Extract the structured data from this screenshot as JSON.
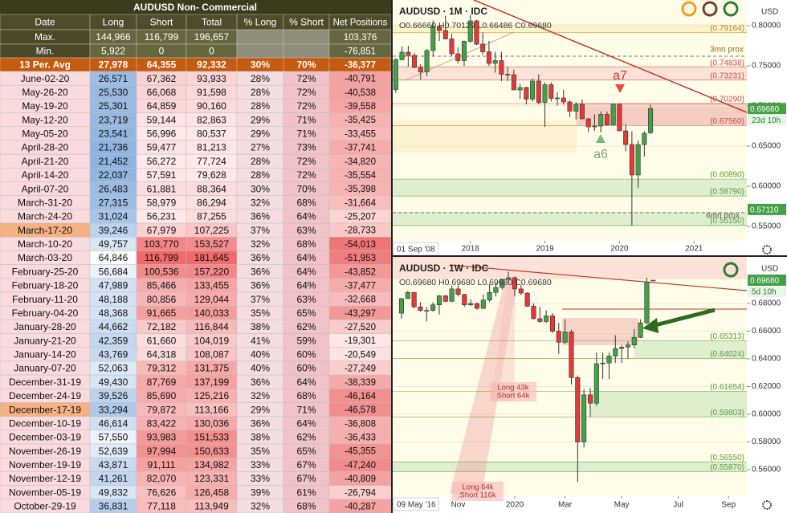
{
  "table": {
    "title": "AUDUSD Non- Commercial",
    "columns": [
      "Date",
      "Long",
      "Short",
      "Total",
      "% Long",
      "% Short",
      "Net Positions"
    ],
    "summary": [
      {
        "label": "Max.",
        "cells": [
          "144,966",
          "116,799",
          "196,657",
          null,
          null,
          "103,376"
        ]
      },
      {
        "label": "Min.",
        "cells": [
          "5,922",
          "0",
          "0",
          null,
          null,
          "-76,851"
        ]
      },
      {
        "label": "13 Per. Avg",
        "cells": [
          "27,978",
          "64,355",
          "92,332",
          "30%",
          "70%",
          "-36,377"
        ]
      }
    ],
    "rows": [
      {
        "cells": [
          "June-02-20",
          "26,571",
          "67,362",
          "93,933",
          "28%",
          "72%",
          "-40,791"
        ]
      },
      {
        "cells": [
          "May-26-20",
          "25,530",
          "66,068",
          "91,598",
          "28%",
          "72%",
          "-40,538"
        ]
      },
      {
        "cells": [
          "May-19-20",
          "25,301",
          "64,859",
          "90,160",
          "28%",
          "72%",
          "-39,558"
        ]
      },
      {
        "cells": [
          "May-12-20",
          "23,719",
          "59,144",
          "82,863",
          "29%",
          "71%",
          "-35,425"
        ]
      },
      {
        "cells": [
          "May-05-20",
          "23,541",
          "56,996",
          "80,537",
          "29%",
          "71%",
          "-33,455"
        ]
      },
      {
        "cells": [
          "April-28-20",
          "21,736",
          "59,477",
          "81,213",
          "27%",
          "73%",
          "-37,741"
        ]
      },
      {
        "cells": [
          "April-21-20",
          "21,452",
          "56,272",
          "77,724",
          "28%",
          "72%",
          "-34,820"
        ]
      },
      {
        "cells": [
          "April-14-20",
          "22,037",
          "57,591",
          "79,628",
          "28%",
          "72%",
          "-35,554"
        ]
      },
      {
        "cells": [
          "April-07-20",
          "26,483",
          "61,881",
          "88,364",
          "30%",
          "70%",
          "-35,398"
        ]
      },
      {
        "cells": [
          "March-31-20",
          "27,315",
          "58,979",
          "86,294",
          "32%",
          "68%",
          "-31,664"
        ]
      },
      {
        "cells": [
          "March-24-20",
          "31,024",
          "56,231",
          "87,255",
          "36%",
          "64%",
          "-25,207"
        ]
      },
      {
        "cells": [
          "March-17-20",
          "39,246",
          "67,979",
          "107,225",
          "37%",
          "63%",
          "-28,733"
        ],
        "date_color": "#f4b183"
      },
      {
        "cells": [
          "March-10-20",
          "49,757",
          "103,770",
          "153,527",
          "32%",
          "68%",
          "-54,013"
        ]
      },
      {
        "cells": [
          "March-03-20",
          "64,846",
          "116,799",
          "181,645",
          "36%",
          "64%",
          "-51,953"
        ]
      },
      {
        "cells": [
          "February-25-20",
          "56,684",
          "100,536",
          "157,220",
          "36%",
          "64%",
          "-43,852"
        ]
      },
      {
        "cells": [
          "February-18-20",
          "47,989",
          "85,466",
          "133,455",
          "36%",
          "64%",
          "-37,477"
        ]
      },
      {
        "cells": [
          "February-11-20",
          "48,188",
          "80,856",
          "129,044",
          "37%",
          "63%",
          "-32,668"
        ]
      },
      {
        "cells": [
          "February-04-20",
          "48,368",
          "91,665",
          "140,033",
          "35%",
          "65%",
          "-43,297"
        ]
      },
      {
        "cells": [
          "January-28-20",
          "44,662",
          "72,182",
          "116,844",
          "38%",
          "62%",
          "-27,520"
        ]
      },
      {
        "cells": [
          "January-21-20",
          "42,359",
          "61,660",
          "104,019",
          "41%",
          "59%",
          "-19,301"
        ]
      },
      {
        "cells": [
          "January-14-20",
          "43,769",
          "64,318",
          "108,087",
          "40%",
          "60%",
          "-20,549"
        ]
      },
      {
        "cells": [
          "January-07-20",
          "52,063",
          "79,312",
          "131,375",
          "40%",
          "60%",
          "-27,249"
        ]
      },
      {
        "cells": [
          "December-31-19",
          "49,430",
          "87,769",
          "137,199",
          "36%",
          "64%",
          "-38,339"
        ]
      },
      {
        "cells": [
          "December-24-19",
          "39,526",
          "85,690",
          "125,216",
          "32%",
          "68%",
          "-46,164"
        ]
      },
      {
        "cells": [
          "December-17-19",
          "33,294",
          "79,872",
          "113,166",
          "29%",
          "71%",
          "-46,578"
        ],
        "date_color": "#f4b183"
      },
      {
        "cells": [
          "December-10-19",
          "46,614",
          "83,422",
          "130,036",
          "36%",
          "64%",
          "-36,808"
        ]
      },
      {
        "cells": [
          "December-03-19",
          "57,550",
          "93,983",
          "151,533",
          "38%",
          "62%",
          "-36,433"
        ]
      },
      {
        "cells": [
          "November-26-19",
          "52,639",
          "97,994",
          "150,633",
          "35%",
          "65%",
          "-45,355"
        ]
      },
      {
        "cells": [
          "November-19-19",
          "43,871",
          "91,111",
          "134,982",
          "33%",
          "67%",
          "-47,240"
        ]
      },
      {
        "cells": [
          "November-12-19",
          "41,261",
          "82,070",
          "123,331",
          "33%",
          "67%",
          "-40,809"
        ]
      },
      {
        "cells": [
          "November-05-19",
          "49,832",
          "76,626",
          "126,458",
          "39%",
          "61%",
          "-26,794"
        ]
      },
      {
        "cells": [
          "October-29-19",
          "36,831",
          "77,118",
          "113,949",
          "32%",
          "68%",
          "-40,287"
        ]
      }
    ]
  },
  "chart_data": [
    {
      "type": "candlestick",
      "title": "AUDUSD · 1M · IDC",
      "ohlc": "O0.66660 H0.70129 L0.66486 C0.69680",
      "currency": "USD",
      "date_label": "01 Sep '08",
      "countdown": "23d 10h",
      "up_color": "#43a047",
      "down_color": "#e53935",
      "xlim": [
        -0.5,
        56.5
      ],
      "xticks": [
        {
          "value": 12,
          "label": "2018"
        },
        {
          "value": 24,
          "label": "2019"
        },
        {
          "value": 36,
          "label": "2020"
        },
        {
          "value": 48,
          "label": "2021"
        }
      ],
      "ylim": [
        0.532,
        0.832
      ],
      "yticks": [
        {
          "value": 0.8,
          "label": "0.80000"
        },
        {
          "value": 0.75,
          "label": "0.75000"
        },
        {
          "value": 0.7,
          "label": "0.70000"
        },
        {
          "value": 0.65,
          "label": "0.65000"
        },
        {
          "value": 0.6,
          "label": "0.60000"
        },
        {
          "value": 0.55,
          "label": "0.55000"
        }
      ],
      "grid": true,
      "levels": [
        {
          "value": 0.79164,
          "label": "(0.79164)",
          "color": "#b8862b"
        },
        {
          "value": 0.74838,
          "label": "(0.74838)",
          "color": "#c0504d"
        },
        {
          "value": 0.73231,
          "label": "(0.73231)",
          "color": "#c0504d"
        },
        {
          "value": 0.7029,
          "label": "(0.70290)",
          "color": "#c0504d"
        },
        {
          "value": 0.6756,
          "label": "(0.67560)",
          "color": "#c0504d"
        },
        {
          "value": 0.6089,
          "label": "(0.60890)",
          "color": "#5a9a3a"
        },
        {
          "value": 0.5879,
          "label": "(0.58790)",
          "color": "#5a9a3a"
        },
        {
          "value": 0.5515,
          "label": "(0.55150)",
          "color": "#5a9a3a"
        }
      ],
      "price_tags": [
        {
          "value": 0.6968,
          "label": "0.69680"
        },
        {
          "value": 0.5711,
          "label": "0.57110"
        }
      ],
      "annotations": [
        "a7",
        "a6",
        "3mn prox",
        "6mn prox"
      ],
      "candles": [
        [
          0.7205,
          0.7595,
          0.7165,
          0.7575
        ],
        [
          0.7575,
          0.774,
          0.7575,
          0.767
        ],
        [
          0.767,
          0.775,
          0.749,
          0.763
        ],
        [
          0.763,
          0.766,
          0.747,
          0.748
        ],
        [
          0.748,
          0.752,
          0.733,
          0.7425
        ],
        [
          0.7425,
          0.771,
          0.737,
          0.769
        ],
        [
          0.769,
          0.8065,
          0.762,
          0.799
        ],
        [
          0.799,
          0.801,
          0.781,
          0.794
        ],
        [
          0.794,
          0.8125,
          0.783,
          0.7835
        ],
        [
          0.7835,
          0.79,
          0.7625,
          0.765
        ],
        [
          0.765,
          0.773,
          0.753,
          0.7565
        ],
        [
          0.7565,
          0.7815,
          0.75,
          0.7805
        ],
        [
          0.7805,
          0.8135,
          0.779,
          0.806
        ],
        [
          0.806,
          0.8075,
          0.776,
          0.777
        ],
        [
          0.777,
          0.7915,
          0.764,
          0.7675
        ],
        [
          0.7675,
          0.781,
          0.75,
          0.753
        ],
        [
          0.753,
          0.7675,
          0.7415,
          0.7565
        ],
        [
          0.7565,
          0.7675,
          0.731,
          0.7395
        ],
        [
          0.7395,
          0.7485,
          0.731,
          0.739
        ],
        [
          0.739,
          0.7455,
          0.72,
          0.72
        ],
        [
          0.72,
          0.7275,
          0.7085,
          0.723
        ],
        [
          0.723,
          0.724,
          0.702,
          0.7085
        ],
        [
          0.7085,
          0.734,
          0.7055,
          0.731
        ],
        [
          0.731,
          0.7395,
          0.702,
          0.7045
        ],
        [
          0.7045,
          0.7295,
          0.674,
          0.7265
        ],
        [
          0.7265,
          0.7295,
          0.7055,
          0.7095
        ],
        [
          0.7095,
          0.717,
          0.7005,
          0.71
        ],
        [
          0.71,
          0.7205,
          0.7015,
          0.705
        ],
        [
          0.705,
          0.707,
          0.6865,
          0.6935
        ],
        [
          0.6935,
          0.705,
          0.683,
          0.702
        ],
        [
          0.702,
          0.708,
          0.683,
          0.684
        ],
        [
          0.684,
          0.685,
          0.6675,
          0.674
        ],
        [
          0.674,
          0.6895,
          0.669,
          0.675
        ],
        [
          0.675,
          0.693,
          0.667,
          0.6895
        ],
        [
          0.6895,
          0.693,
          0.6755,
          0.6765
        ],
        [
          0.6765,
          0.703,
          0.6755,
          0.702
        ],
        [
          0.702,
          0.703,
          0.6685,
          0.669
        ],
        [
          0.669,
          0.6775,
          0.6435,
          0.652
        ],
        [
          0.652,
          0.6685,
          0.551,
          0.614
        ],
        [
          0.614,
          0.657,
          0.598,
          0.652
        ],
        [
          0.652,
          0.6685,
          0.637,
          0.666
        ],
        [
          0.6666,
          0.70129,
          0.66486,
          0.6968
        ]
      ]
    },
    {
      "type": "candlestick",
      "title": "AUDUSD · 1W · IDC",
      "ohlc": "O0.69680 H0.69680 L0.69680 C0.69680",
      "currency": "USD",
      "date_label": "09 May '16",
      "countdown": "5d 10h",
      "up_color": "#43a047",
      "down_color": "#e53935",
      "xlim": [
        -1.4,
        54.9
      ],
      "xticks": [
        {
          "value": 9,
          "label": "Nov"
        },
        {
          "value": 18,
          "label": "2020"
        },
        {
          "value": 26,
          "label": "Mar"
        },
        {
          "value": 35,
          "label": "May"
        },
        {
          "value": 44,
          "label": "Jul"
        },
        {
          "value": 52,
          "label": "Sep"
        }
      ],
      "ylim": [
        0.5409,
        0.7136
      ],
      "yticks": [
        {
          "value": 0.68,
          "label": "0.68000"
        },
        {
          "value": 0.66,
          "label": "0.66000"
        },
        {
          "value": 0.64,
          "label": "0.64000"
        },
        {
          "value": 0.62,
          "label": "0.62000"
        },
        {
          "value": 0.6,
          "label": "0.60000"
        },
        {
          "value": 0.58,
          "label": "0.58000"
        },
        {
          "value": 0.56,
          "label": "0.56000"
        }
      ],
      "grid": true,
      "levels": [
        {
          "value": 0.65313,
          "label": "(0.65313)",
          "color": "#5a9a3a"
        },
        {
          "value": 0.64024,
          "label": "(0.64024)",
          "color": "#5a9a3a"
        },
        {
          "value": 0.61654,
          "label": "(0.61654)",
          "color": "#5a9a3a"
        },
        {
          "value": 0.59803,
          "label": "(0.59803)",
          "color": "#5a9a3a"
        },
        {
          "value": 0.5655,
          "label": "(0.56550)",
          "color": "#5a9a3a"
        },
        {
          "value": 0.5587,
          "label": "(0.55870)",
          "color": "#5a9a3a"
        }
      ],
      "price_tags": [
        {
          "value": 0.6968,
          "label": "0.69680"
        }
      ],
      "notes": [
        [
          "Long 43k",
          "Short 64k"
        ],
        [
          "Long 64k",
          "Short 116k"
        ]
      ],
      "candles": [
        [
          0.673,
          0.684,
          0.669,
          0.6835
        ],
        [
          0.6835,
          0.689,
          0.6835,
          0.688
        ],
        [
          0.688,
          0.688,
          0.6765,
          0.6775
        ],
        [
          0.6775,
          0.681,
          0.674,
          0.675
        ],
        [
          0.675,
          0.6775,
          0.667,
          0.675
        ],
        [
          0.675,
          0.681,
          0.674,
          0.679
        ],
        [
          0.679,
          0.686,
          0.672,
          0.6855
        ],
        [
          0.6855,
          0.686,
          0.681,
          0.6815
        ],
        [
          0.6815,
          0.693,
          0.6815,
          0.6905
        ],
        [
          0.6905,
          0.693,
          0.685,
          0.6865
        ],
        [
          0.6865,
          0.687,
          0.6775,
          0.679
        ],
        [
          0.679,
          0.683,
          0.678,
          0.68
        ],
        [
          0.68,
          0.6805,
          0.6755,
          0.6765
        ],
        [
          0.6765,
          0.6865,
          0.676,
          0.6825
        ],
        [
          0.6825,
          0.694,
          0.681,
          0.688
        ],
        [
          0.688,
          0.695,
          0.685,
          0.6915
        ],
        [
          0.6915,
          0.6975,
          0.69,
          0.6975
        ],
        [
          0.6975,
          0.703,
          0.697,
          0.6985
        ],
        [
          0.6985,
          0.6995,
          0.685,
          0.6905
        ],
        [
          0.6905,
          0.6935,
          0.686,
          0.6875
        ],
        [
          0.6875,
          0.688,
          0.6775,
          0.678
        ],
        [
          0.678,
          0.68,
          0.6685,
          0.669
        ],
        [
          0.669,
          0.6775,
          0.666,
          0.667
        ],
        [
          0.667,
          0.675,
          0.666,
          0.671
        ],
        [
          0.671,
          0.673,
          0.6585,
          0.66
        ],
        [
          0.66,
          0.666,
          0.6435,
          0.652
        ],
        [
          0.652,
          0.6685,
          0.651,
          0.6595
        ],
        [
          0.6595,
          0.661,
          0.6215,
          0.6265
        ],
        [
          0.6265,
          0.628,
          0.551,
          0.58
        ],
        [
          0.58,
          0.618,
          0.576,
          0.614
        ],
        [
          0.614,
          0.619,
          0.598,
          0.608
        ],
        [
          0.608,
          0.6445,
          0.606,
          0.6365
        ],
        [
          0.6365,
          0.6445,
          0.6255,
          0.637
        ],
        [
          0.637,
          0.6445,
          0.6255,
          0.642
        ],
        [
          0.642,
          0.657,
          0.637,
          0.6475
        ],
        [
          0.6475,
          0.65,
          0.637,
          0.6485
        ],
        [
          0.6485,
          0.6525,
          0.64,
          0.65
        ],
        [
          0.65,
          0.6615,
          0.6475,
          0.6555
        ],
        [
          0.6555,
          0.6685,
          0.655,
          0.666
        ],
        [
          0.666,
          0.6985,
          0.665,
          0.6955
        ],
        [
          0.6968,
          0.6968,
          0.6968,
          0.6968
        ]
      ]
    }
  ]
}
